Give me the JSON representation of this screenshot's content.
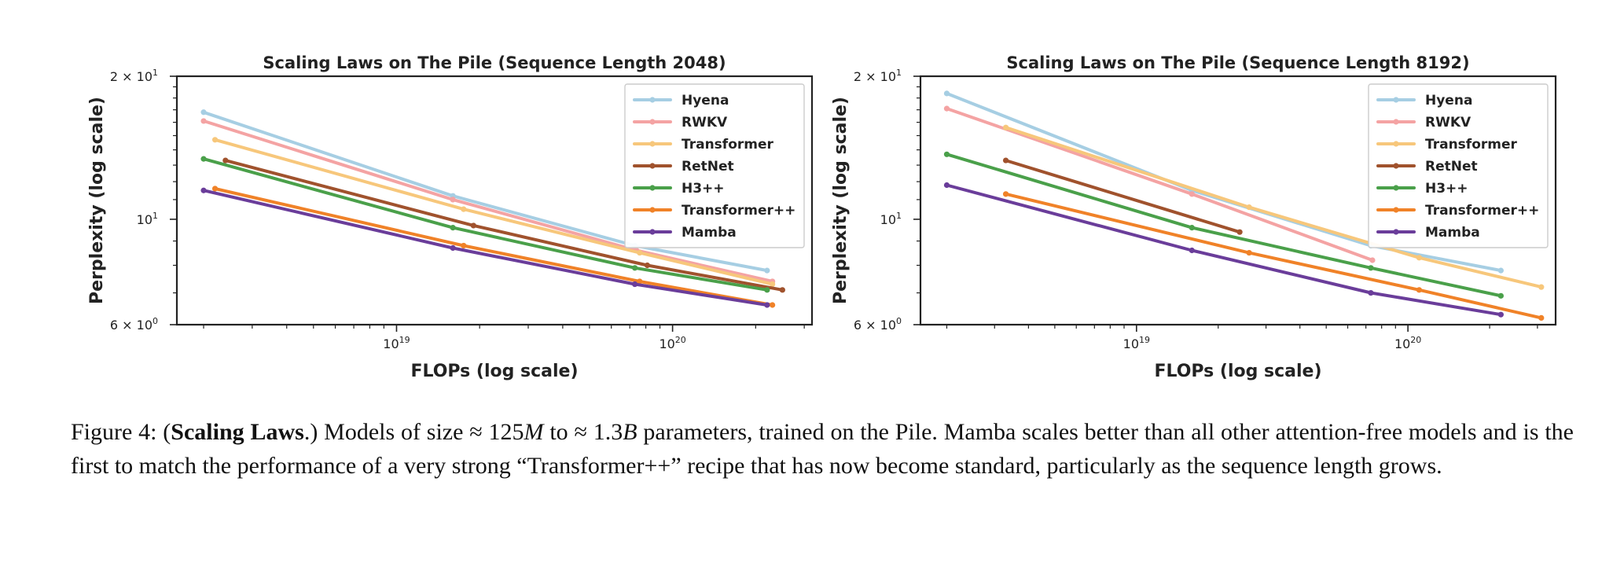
{
  "chart_data": [
    {
      "type": "line",
      "title": "Scaling Laws on The Pile (Sequence Length 2048)",
      "xlabel": "FLOPs (log scale)",
      "ylabel": "Perplexity (log scale)",
      "xscale": "log",
      "yscale": "log",
      "xlim": [
        1.6e+18,
        3.2e+20
      ],
      "ylim": [
        6,
        20
      ],
      "x_ticks": [
        {
          "value": 1e+19,
          "label": "10",
          "exp": "19"
        },
        {
          "value": 1e+20,
          "label": "10",
          "exp": "20"
        }
      ],
      "y_ticks": [
        {
          "value": 20,
          "label": "2 × 10",
          "exp": "1"
        },
        {
          "value": 10,
          "label": "10",
          "exp": "1"
        },
        {
          "value": 6,
          "label": "6 × 10",
          "exp": "0"
        }
      ],
      "legend_position": "top-right",
      "series": [
        {
          "name": "Hyena",
          "color": "#a6cee3",
          "x": [
            2e+18,
            1.6e+19,
            7.3e+19,
            2.2e+20
          ],
          "y": [
            16.8,
            11.2,
            8.8,
            7.8
          ]
        },
        {
          "name": "RWKV",
          "color": "#f4a3a3",
          "x": [
            2e+18,
            1.6e+19,
            7.4e+19,
            2.3e+20
          ],
          "y": [
            16.1,
            11.0,
            8.6,
            7.4
          ]
        },
        {
          "name": "Transformer",
          "color": "#f7c77b",
          "x": [
            2.2e+18,
            1.75e+19,
            7.6e+19,
            2.3e+20
          ],
          "y": [
            14.7,
            10.5,
            8.5,
            7.3
          ]
        },
        {
          "name": "RetNet",
          "color": "#a0522d",
          "x": [
            2.4e+18,
            1.9e+19,
            8.1e+19,
            2.5e+20
          ],
          "y": [
            13.3,
            9.7,
            8.0,
            7.1
          ]
        },
        {
          "name": "H3++",
          "color": "#4aa04a",
          "x": [
            2e+18,
            1.6e+19,
            7.3e+19,
            2.2e+20
          ],
          "y": [
            13.4,
            9.6,
            7.9,
            7.1
          ]
        },
        {
          "name": "Transformer++",
          "color": "#f08228",
          "x": [
            2.2e+18,
            1.75e+19,
            7.6e+19,
            2.3e+20
          ],
          "y": [
            11.6,
            8.8,
            7.4,
            6.6
          ]
        },
        {
          "name": "Mamba",
          "color": "#6a3d9a",
          "x": [
            2e+18,
            1.6e+19,
            7.3e+19,
            2.2e+20
          ],
          "y": [
            11.5,
            8.7,
            7.3,
            6.6
          ]
        }
      ]
    },
    {
      "type": "line",
      "title": "Scaling Laws on The Pile (Sequence Length 8192)",
      "xlabel": "FLOPs (log scale)",
      "ylabel": "Perplexity (log scale)",
      "xscale": "log",
      "yscale": "log",
      "xlim": [
        1.6e+18,
        3.5e+20
      ],
      "ylim": [
        6,
        20
      ],
      "x_ticks": [
        {
          "value": 1e+19,
          "label": "10",
          "exp": "19"
        },
        {
          "value": 1e+20,
          "label": "10",
          "exp": "20"
        }
      ],
      "y_ticks": [
        {
          "value": 20,
          "label": "2 × 10",
          "exp": "1"
        },
        {
          "value": 10,
          "label": "10",
          "exp": "1"
        },
        {
          "value": 6,
          "label": "6 × 10",
          "exp": "0"
        }
      ],
      "legend_position": "top-right",
      "series": [
        {
          "name": "Hyena",
          "color": "#a6cee3",
          "x": [
            2e+18,
            1.6e+19,
            7.3e+19,
            2.2e+20
          ],
          "y": [
            18.4,
            11.5,
            8.8,
            7.8
          ]
        },
        {
          "name": "RWKV",
          "color": "#f4a3a3",
          "x": [
            2e+18,
            1.6e+19,
            7.4e+19
          ],
          "y": [
            17.1,
            11.3,
            8.2
          ]
        },
        {
          "name": "Transformer",
          "color": "#f7c77b",
          "x": [
            3.3e+18,
            2.6e+19,
            1.1e+20,
            3.1e+20
          ],
          "y": [
            15.6,
            10.6,
            8.3,
            7.2
          ]
        },
        {
          "name": "RetNet",
          "color": "#a0522d",
          "x": [
            3.3e+18,
            2.4e+19
          ],
          "y": [
            13.3,
            9.4
          ]
        },
        {
          "name": "H3++",
          "color": "#4aa04a",
          "x": [
            2e+18,
            1.6e+19,
            7.3e+19,
            2.2e+20
          ],
          "y": [
            13.7,
            9.6,
            7.9,
            6.9
          ]
        },
        {
          "name": "Transformer++",
          "color": "#f08228",
          "x": [
            3.3e+18,
            2.6e+19,
            1.1e+20,
            3.1e+20
          ],
          "y": [
            11.3,
            8.5,
            7.1,
            6.2
          ]
        },
        {
          "name": "Mamba",
          "color": "#6a3d9a",
          "x": [
            2e+18,
            1.6e+19,
            7.3e+19,
            2.2e+20
          ],
          "y": [
            11.8,
            8.6,
            7.0,
            6.3
          ]
        }
      ]
    }
  ],
  "caption": {
    "label": "Figure 4: (",
    "bold": "Scaling Laws",
    "after_bold": ".) Models of size ≈ 125",
    "m_unit": "M",
    "mid": " to ≈ 1.3",
    "b_unit": "B",
    "rest": " parameters, trained on the Pile. Mamba scales better than all other attention-free models and is the first to match the performance of a very strong “Transformer++” recipe that has now become standard, particularly as the sequence length grows."
  }
}
